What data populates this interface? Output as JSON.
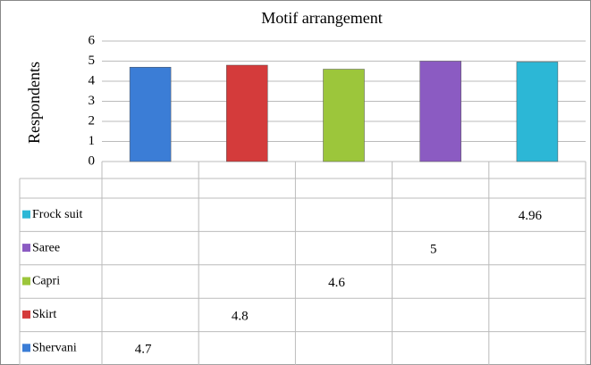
{
  "chart_data": {
    "type": "bar",
    "title": "Motif arrangement",
    "y_label": "Respondents",
    "categories": [
      null,
      null,
      null,
      null,
      null
    ],
    "series": [
      {
        "name": "Shervani",
        "color": "#3b7dd6",
        "values": [
          4.7,
          null,
          null,
          null,
          null
        ]
      },
      {
        "name": "Skirt",
        "color": "#d43b3b",
        "values": [
          null,
          4.8,
          null,
          null,
          null
        ]
      },
      {
        "name": "Capri",
        "color": "#9cc63b",
        "values": [
          null,
          null,
          4.6,
          null,
          null
        ]
      },
      {
        "name": "Saree",
        "color": "#8b5bc2",
        "values": [
          null,
          null,
          null,
          5,
          null
        ]
      },
      {
        "name": "Frock suit",
        "color": "#2cb7d6",
        "values": [
          null,
          null,
          null,
          null,
          4.96
        ]
      }
    ],
    "ylim": [
      0,
      6
    ],
    "yticks": [
      0,
      1,
      2,
      3,
      4,
      5,
      6
    ],
    "grid": true,
    "data_table": true
  }
}
